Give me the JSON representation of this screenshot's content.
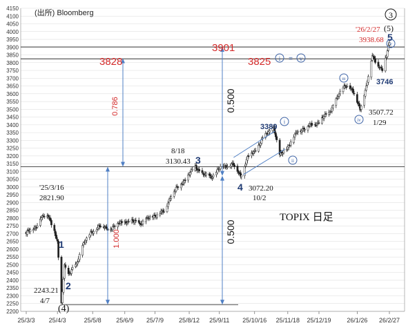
{
  "source_label": "(出所)  Bloomberg",
  "chart_label": "TOPIX 日足",
  "colors": {
    "candle": "#222222",
    "arrow": "#4f7fc4",
    "annot_red": "#d42a2a",
    "annot_navy": "#1f3a73",
    "circle": "#3d63a6",
    "grid": "#d9d9d9",
    "line": "#111111"
  },
  "chart_data": {
    "type": "candlestick",
    "title": "TOPIX 日足",
    "ylim": [
      2200,
      4150
    ],
    "y_ticks": [
      2200,
      2250,
      2300,
      2350,
      2400,
      2450,
      2500,
      2550,
      2600,
      2650,
      2700,
      2750,
      2800,
      2850,
      2900,
      2950,
      3000,
      3050,
      3100,
      3150,
      3200,
      3250,
      3300,
      3350,
      3400,
      3450,
      3500,
      3550,
      3600,
      3650,
      3700,
      3750,
      3800,
      3850,
      3900,
      3950,
      4000,
      4050,
      4100,
      4150
    ],
    "x_ticks": [
      "25/3/3",
      "25/4/3",
      "25/5/8",
      "25/6/9",
      "25/7/9",
      "25/8/12",
      "25/9/11",
      "25/10/16",
      "25/11/18",
      "25/12/19",
      "26/1/26",
      "26/2/27"
    ],
    "grid": true,
    "levels": [
      3130.43,
      3825,
      3901,
      2243.21
    ],
    "anchors": [
      {
        "date": "25/3/3",
        "value": 2705
      },
      {
        "date": "25/3/7",
        "value": 2720
      },
      {
        "date": "25/3/13",
        "value": 2745
      },
      {
        "date": "25/3/16",
        "value": 2800
      },
      {
        "date": "25/3/25",
        "value": 2815
      },
      {
        "date": "25/3/31",
        "value": 2720
      },
      {
        "date": "25/4/3",
        "value": 2640
      },
      {
        "date": "25/4/7",
        "value": 2243.21
      },
      {
        "date": "25/4/10",
        "value": 2500
      },
      {
        "date": "25/4/14",
        "value": 2440
      },
      {
        "date": "25/4/22",
        "value": 2500
      },
      {
        "date": "25/4/28",
        "value": 2630
      },
      {
        "date": "25/5/6",
        "value": 2700
      },
      {
        "date": "25/5/14",
        "value": 2750
      },
      {
        "date": "25/5/23",
        "value": 2730
      },
      {
        "date": "25/6/9",
        "value": 2780
      },
      {
        "date": "25/6/25",
        "value": 2770
      },
      {
        "date": "25/7/9",
        "value": 2820
      },
      {
        "date": "25/7/18",
        "value": 2840
      },
      {
        "date": "25/7/25",
        "value": 2950
      },
      {
        "date": "25/8/8",
        "value": 3050
      },
      {
        "date": "25/8/18",
        "value": 3130.43
      },
      {
        "date": "25/8/26",
        "value": 3080
      },
      {
        "date": "25/9/3",
        "value": 3065
      },
      {
        "date": "25/9/11",
        "value": 3120
      },
      {
        "date": "25/9/24",
        "value": 3150
      },
      {
        "date": "25/10/2",
        "value": 3072.2
      },
      {
        "date": "25/10/9",
        "value": 3190
      },
      {
        "date": "25/10/16",
        "value": 3230
      },
      {
        "date": "25/10/24",
        "value": 3310
      },
      {
        "date": "25/11/4",
        "value": 3389
      },
      {
        "date": "25/11/10",
        "value": 3200
      },
      {
        "date": "25/11/18",
        "value": 3260
      },
      {
        "date": "25/11/28",
        "value": 3360
      },
      {
        "date": "25/12/5",
        "value": 3380
      },
      {
        "date": "25/12/12",
        "value": 3400
      },
      {
        "date": "25/12/19",
        "value": 3420
      },
      {
        "date": "25/12/29",
        "value": 3480
      },
      {
        "date": "26/1/6",
        "value": 3570
      },
      {
        "date": "26/1/14",
        "value": 3660
      },
      {
        "date": "26/1/21",
        "value": 3620
      },
      {
        "date": "26/1/29",
        "value": 3507.72
      },
      {
        "date": "26/2/4",
        "value": 3640
      },
      {
        "date": "26/2/10",
        "value": 3850
      },
      {
        "date": "26/2/16",
        "value": 3780
      },
      {
        "date": "26/2/20",
        "value": 3746
      },
      {
        "date": "26/2/24",
        "value": 3850
      },
      {
        "date": "26/2/27",
        "value": 3938.68
      }
    ],
    "annotations": {
      "fib_786": "0.786",
      "fib_1000_left": "1.000",
      "fib_500_upper": "0.500",
      "fib_500_lower": "0.500",
      "level_3828": "3828",
      "level_3901": "3901",
      "level_3825": "3825",
      "wave_i_eq_v": "=",
      "date_250316": "'25/3/16",
      "val_2821": "2821.90",
      "date_0818": "8/18",
      "val_3130": "3130.43",
      "val_2243": "2243.21",
      "date_0407": "4/7",
      "val_3072": "3072.20",
      "date_1002": "10/2",
      "val_3389": "3389",
      "val_3746": "3746",
      "val_3507": "3507.72",
      "date_0129": "1/29",
      "date_260227": "'26/2/27",
      "val_3938": "3938.68",
      "wave_1": "1",
      "wave_2": "2",
      "wave_3": "3",
      "wave_4": "4",
      "wave_5": "5",
      "wave_paren4": "(4)",
      "wave_paren5": "(5)",
      "wave_circle3": "3",
      "roman_i_a": "i",
      "roman_ii": "ii",
      "roman_i_b": "i",
      "roman_iii": "iii",
      "roman_iv": "iv",
      "roman_v_a": "v",
      "roman_v_b": "v"
    }
  }
}
